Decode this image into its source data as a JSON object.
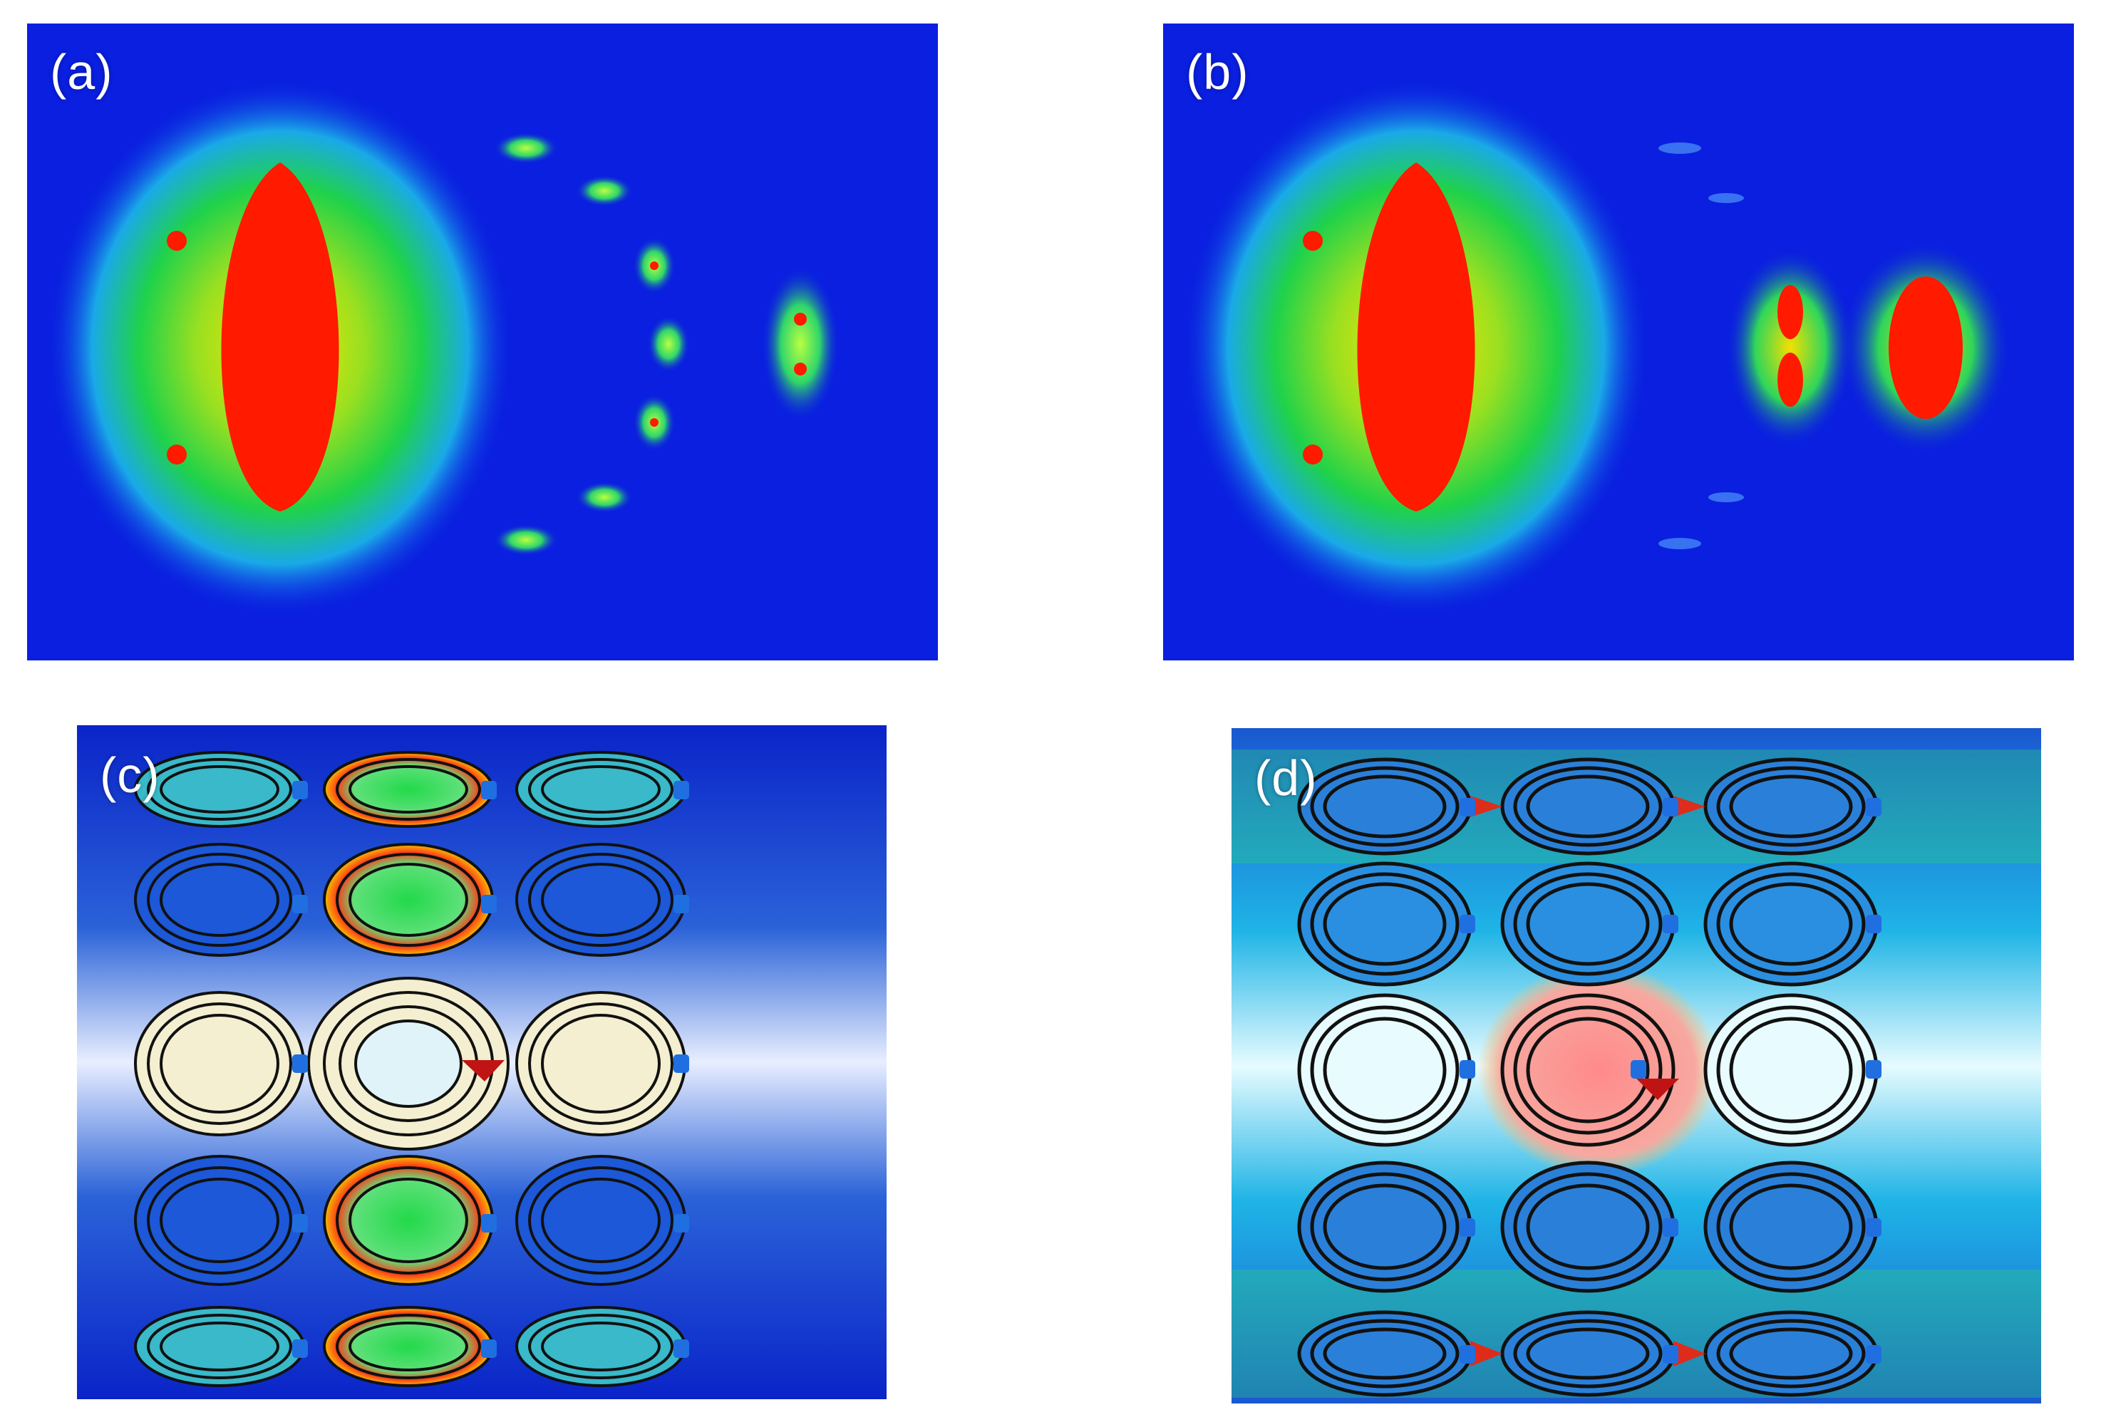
{
  "panels": {
    "a": {
      "label": "(a)"
    },
    "b": {
      "label": "(b)"
    },
    "c": {
      "label": "(c)"
    },
    "d": {
      "label": "(d)"
    }
  },
  "colors": {
    "field_background": "#0a1fe0",
    "hot_red": "#ff1a00",
    "mid_green": "#19d23a",
    "cool_cyan": "#2de6ff",
    "coil_black": "#111111",
    "port_blue": "#1f6fe0",
    "port_red": "#c01414"
  }
}
